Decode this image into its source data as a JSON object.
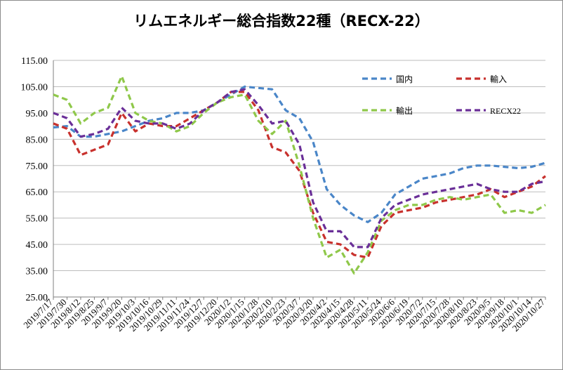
{
  "chart_data": {
    "type": "line",
    "title": "リムエネルギー総合指数22種（RECX-22）",
    "ylim": [
      25,
      115
    ],
    "y_ticks": [
      "25.00",
      "35.00",
      "45.00",
      "55.00",
      "65.00",
      "75.00",
      "85.00",
      "95.00",
      "105.00",
      "115.00"
    ],
    "x_tick_labels": [
      "2019/7/17",
      "2019/7/30",
      "2019/8/12",
      "2019/8/25",
      "2019/9/7",
      "2019/9/20",
      "2019/10/3",
      "2019/10/16",
      "2019/10/29",
      "2019/11/11",
      "2019/11/24",
      "2019/12/7",
      "2019/12/20",
      "2020/1/2",
      "2020/1/15",
      "2020/1/28",
      "2020/2/10",
      "2020/2/23",
      "2020/3/7",
      "2020/3/20",
      "2020/4/2",
      "2020/4/15",
      "2020/4/28",
      "2020/5/11",
      "2020/5/24",
      "2020/6/6",
      "2020/6/19",
      "2020/7/2",
      "2020/7/15",
      "2020/7/28",
      "2020/8/10",
      "2020/8/23",
      "2020/9/5",
      "2020/9/18",
      "2020/10/1",
      "2020/10/14",
      "2020/10/27"
    ],
    "grid": "horizontal",
    "legend": "inside-top",
    "x": [
      "2019/7/17",
      "2019/7/30",
      "2019/8/12",
      "2019/8/25",
      "2019/9/7",
      "2019/9/20",
      "2019/10/3",
      "2019/10/16",
      "2019/10/29",
      "2019/11/11",
      "2019/11/24",
      "2019/12/7",
      "2019/12/20",
      "2020/1/2",
      "2020/1/15",
      "2020/1/28",
      "2020/2/10",
      "2020/2/23",
      "2020/3/7",
      "2020/3/20",
      "2020/4/2",
      "2020/4/15",
      "2020/4/28",
      "2020/5/11",
      "2020/5/24",
      "2020/6/6",
      "2020/6/19",
      "2020/7/2",
      "2020/7/15",
      "2020/7/28",
      "2020/8/10",
      "2020/8/23",
      "2020/9/5",
      "2020/9/18",
      "2020/10/1",
      "2020/10/14",
      "2020/10/27"
    ],
    "series": [
      {
        "name": "国内",
        "color": "#4a86c8",
        "values": [
          89.5,
          90,
          86,
          86,
          87,
          88,
          90,
          92,
          93,
          95,
          95,
          96,
          99,
          102,
          105,
          104.5,
          104,
          96,
          93,
          84,
          66,
          60,
          56,
          53.5,
          57,
          64,
          67,
          70,
          71,
          72,
          74,
          75,
          75,
          74.5,
          74,
          74.5,
          76
        ]
      },
      {
        "name": "輸入",
        "color": "#c8312d",
        "values": [
          91,
          89,
          79,
          81,
          83,
          95,
          88,
          91,
          90,
          90,
          93,
          96,
          99,
          103,
          103,
          96,
          82,
          80,
          73,
          57,
          46,
          45,
          41,
          40,
          52,
          57,
          58,
          59,
          61,
          62,
          63,
          64,
          66,
          63,
          65,
          67,
          71
        ]
      },
      {
        "name": "輸出",
        "color": "#8fc84a",
        "values": [
          102,
          100,
          91,
          95,
          97,
          109,
          95,
          92,
          91,
          88,
          90,
          95,
          99,
          101,
          102,
          92,
          87,
          92,
          75,
          55,
          40,
          43,
          34,
          42,
          54,
          58,
          60,
          60,
          62,
          63,
          62,
          63,
          64,
          57,
          58,
          57,
          60
        ]
      },
      {
        "name": "RECX22",
        "color": "#6a2f98",
        "values": [
          95,
          93,
          86,
          87,
          89,
          97,
          92,
          91,
          91,
          89,
          91,
          96,
          99,
          103,
          104,
          98,
          91,
          92,
          83,
          61,
          50,
          50,
          44,
          44,
          55,
          60,
          62,
          64,
          65,
          66,
          67,
          68,
          66,
          65,
          65,
          68,
          69
        ]
      }
    ]
  }
}
